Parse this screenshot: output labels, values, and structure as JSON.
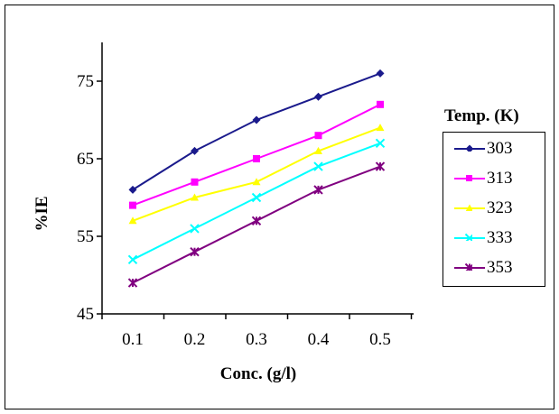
{
  "chart_data": {
    "type": "line",
    "title": "",
    "xlabel": "Conc. (g/l)",
    "ylabel": "%IE",
    "x": [
      0.1,
      0.2,
      0.3,
      0.4,
      0.5
    ],
    "x_tick_labels": [
      "0.1",
      "0.2",
      "0.3",
      "0.4",
      "0.5"
    ],
    "ylim": [
      45,
      80
    ],
    "y_ticks": [
      45,
      55,
      65,
      75
    ],
    "grid": false,
    "legend_title": "Temp. (K)",
    "legend_position": "right",
    "series": [
      {
        "name": "303",
        "color": "#1a1a8c",
        "marker": "diamond",
        "values": [
          61,
          66,
          70,
          73,
          76
        ]
      },
      {
        "name": "313",
        "color": "#ff00ff",
        "marker": "square",
        "values": [
          59,
          62,
          65,
          68,
          72
        ]
      },
      {
        "name": "323",
        "color": "#ffff00",
        "marker": "triangle",
        "values": [
          57,
          60,
          62,
          66,
          69
        ]
      },
      {
        "name": "333",
        "color": "#00ffff",
        "marker": "x",
        "values": [
          52,
          56,
          60,
          64,
          67
        ]
      },
      {
        "name": "353",
        "color": "#800080",
        "marker": "star",
        "values": [
          49,
          53,
          57,
          61,
          64
        ]
      }
    ]
  }
}
